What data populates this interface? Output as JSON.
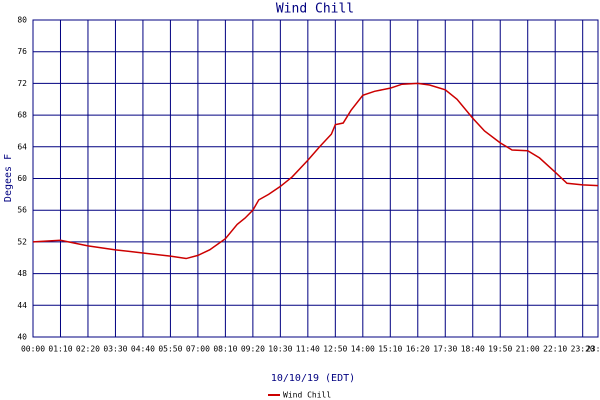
{
  "chart_data": {
    "type": "line",
    "title": "Wind Chill",
    "x_label": "10/10/19 (EDT)",
    "y_label": "Degees F",
    "xlim": [
      0,
      1439
    ],
    "ylim": [
      40,
      80
    ],
    "yticks": [
      40,
      44,
      48,
      52,
      56,
      60,
      64,
      68,
      72,
      76,
      80
    ],
    "xticks": [
      {
        "value": 0,
        "label": "00:00"
      },
      {
        "value": 70,
        "label": "01:10"
      },
      {
        "value": 140,
        "label": "02:20"
      },
      {
        "value": 210,
        "label": "03:30"
      },
      {
        "value": 280,
        "label": "04:40"
      },
      {
        "value": 350,
        "label": "05:50"
      },
      {
        "value": 420,
        "label": "07:00"
      },
      {
        "value": 490,
        "label": "08:10"
      },
      {
        "value": 560,
        "label": "09:20"
      },
      {
        "value": 630,
        "label": "10:30"
      },
      {
        "value": 700,
        "label": "11:40"
      },
      {
        "value": 770,
        "label": "12:50"
      },
      {
        "value": 840,
        "label": "14:00"
      },
      {
        "value": 910,
        "label": "15:10"
      },
      {
        "value": 980,
        "label": "16:20"
      },
      {
        "value": 1050,
        "label": "17:30"
      },
      {
        "value": 1120,
        "label": "18:40"
      },
      {
        "value": 1190,
        "label": "19:50"
      },
      {
        "value": 1260,
        "label": "21:00"
      },
      {
        "value": 1330,
        "label": "22:10"
      },
      {
        "value": 1400,
        "label": "23:20"
      },
      {
        "value": 1439,
        "label": "23:59"
      }
    ],
    "grid": true,
    "x": [
      0,
      70,
      140,
      210,
      280,
      350,
      390,
      420,
      450,
      490,
      520,
      540,
      560,
      575,
      600,
      630,
      660,
      700,
      730,
      760,
      770,
      790,
      810,
      840,
      870,
      910,
      940,
      980,
      1010,
      1050,
      1080,
      1120,
      1150,
      1190,
      1220,
      1260,
      1290,
      1330,
      1360,
      1400,
      1439
    ],
    "series": [
      {
        "name": "Wind Chill",
        "color": "#cc0000",
        "values": [
          52.0,
          52.2,
          51.5,
          51.0,
          50.6,
          50.2,
          49.9,
          50.3,
          51.0,
          52.4,
          54.2,
          55.0,
          56.0,
          57.3,
          58.0,
          59.0,
          60.2,
          62.3,
          64.0,
          65.6,
          66.8,
          67.0,
          68.6,
          70.5,
          71.0,
          71.4,
          71.9,
          72.0,
          71.8,
          71.2,
          70.0,
          67.6,
          66.0,
          64.5,
          63.6,
          63.5,
          62.6,
          60.8,
          59.4,
          59.2,
          59.1
        ]
      }
    ]
  }
}
